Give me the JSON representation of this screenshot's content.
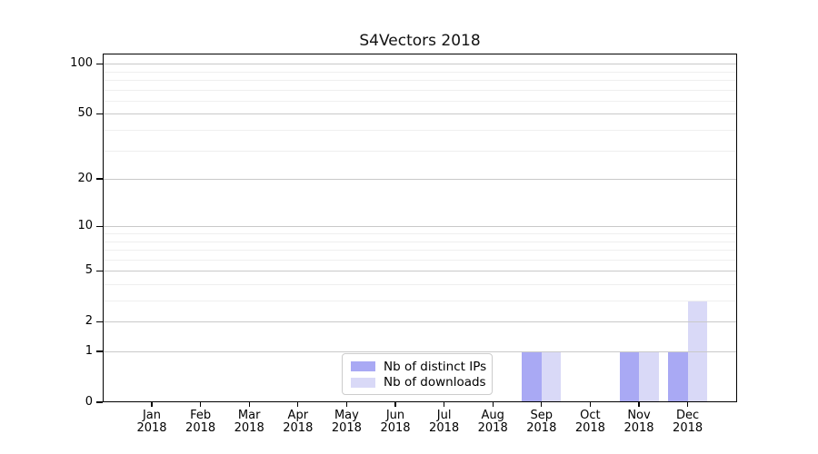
{
  "chart_data": {
    "type": "bar",
    "title": "S4Vectors 2018",
    "x": {
      "months": [
        "Jan",
        "Feb",
        "Mar",
        "Apr",
        "May",
        "Jun",
        "Jul",
        "Aug",
        "Sep",
        "Oct",
        "Nov",
        "Dec"
      ],
      "year": "2018"
    },
    "y_axis": {
      "scale": "log1p",
      "major_ticks": [
        0,
        1,
        2,
        5,
        10,
        20,
        50,
        100
      ],
      "minor_ticks": [
        3,
        4,
        6,
        7,
        8,
        9,
        30,
        40,
        60,
        70,
        80,
        90
      ],
      "ylim": [
        0,
        115
      ]
    },
    "series": [
      {
        "name": "Nb of distinct IPs",
        "color": "#a9a9f4",
        "values": [
          0,
          0,
          0,
          0,
          0,
          0,
          0,
          0,
          1,
          0,
          1,
          1
        ]
      },
      {
        "name": "Nb of downloads",
        "color": "#d9d9f7",
        "values": [
          0,
          0,
          0,
          0,
          0,
          0,
          0,
          0,
          1,
          0,
          1,
          3
        ]
      }
    ],
    "grid": {
      "orientation": "horizontal",
      "major_color": "#c9c9c9",
      "minor_color": "#efefef",
      "grid_above_bars": true
    },
    "legend": {
      "position": "bottom-center"
    }
  }
}
